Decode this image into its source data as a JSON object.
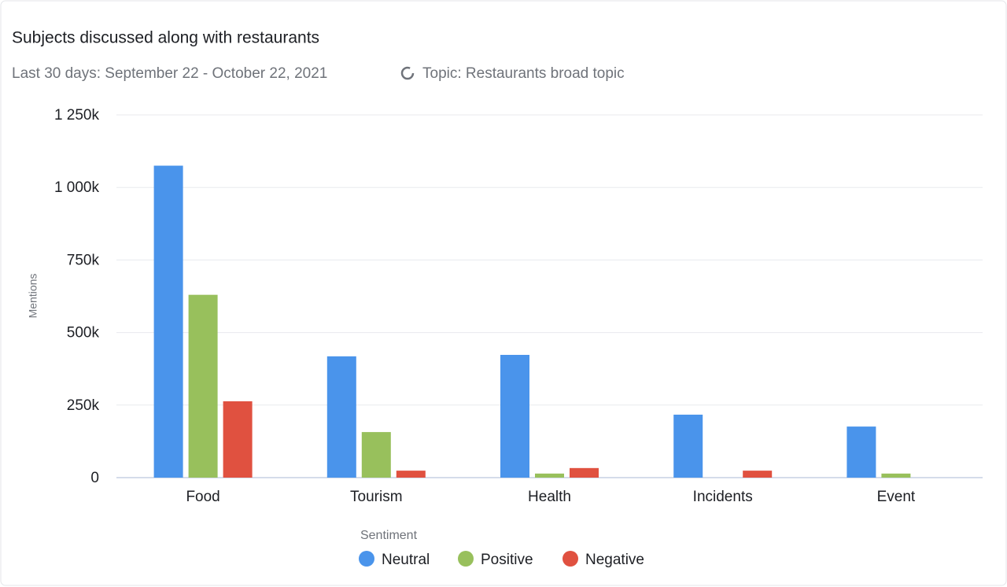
{
  "chart_data": {
    "type": "bar",
    "title": "Subjects discussed along with restaurants",
    "subtitle": "Last 30 days: September 22 - October 22, 2021",
    "topic": "Topic: Restaurants broad topic",
    "y_label": "Mentions",
    "legend_title": "Sentiment",
    "categories": [
      "Food",
      "Tourism",
      "Health",
      "Incidents",
      "Event"
    ],
    "series": [
      {
        "name": "Neutral",
        "color": "#4a94eb",
        "values": [
          1075000,
          418000,
          423000,
          217000,
          176000
        ]
      },
      {
        "name": "Positive",
        "color": "#98c05c",
        "values": [
          630000,
          157000,
          14000,
          0,
          14000
        ]
      },
      {
        "name": "Negative",
        "color": "#e05140",
        "values": [
          263000,
          24000,
          33000,
          24000,
          0
        ]
      }
    ],
    "ylim": [
      0,
      1250000
    ],
    "yticks": [
      {
        "value": 0,
        "label": "0"
      },
      {
        "value": 250000,
        "label": "250k"
      },
      {
        "value": 500000,
        "label": "500k"
      },
      {
        "value": 750000,
        "label": "750k"
      },
      {
        "value": 1000000,
        "label": "1 000k"
      },
      {
        "value": 1250000,
        "label": "1 250k"
      }
    ],
    "grid": true
  }
}
